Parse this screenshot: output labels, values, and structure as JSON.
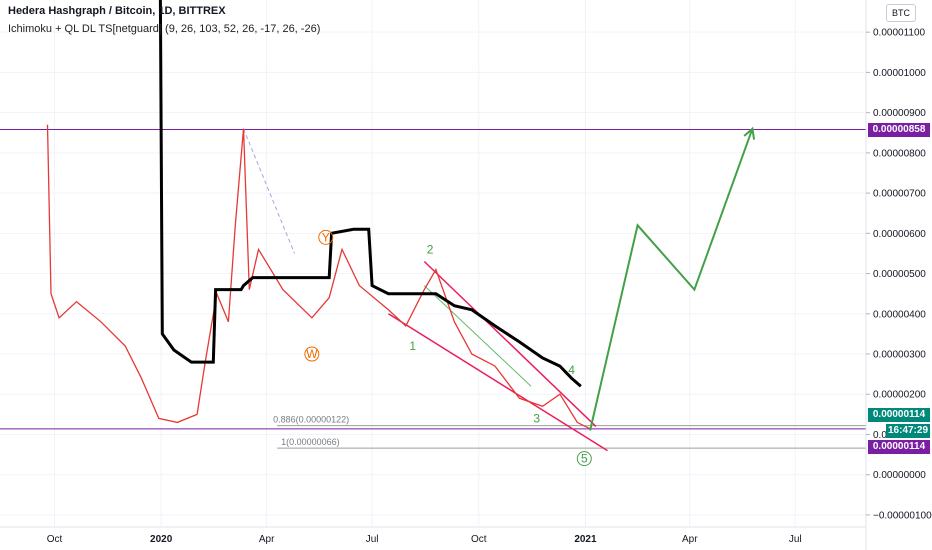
{
  "header": {
    "title": "Hedera Hashgraph / Bitcoin, 1D, BITTREX",
    "indicator": "Ichimoku + QL DL TS[netguard] (9, 26, 103, 52, 26, -17, 26, -26)"
  },
  "currency_button": "BTC",
  "chart_data": {
    "type": "line",
    "x_ticks": [
      "Oct",
      "2020",
      "Apr",
      "Jul",
      "Oct",
      "2021",
      "Apr",
      "Jul"
    ],
    "y_ticks": [
      1.1e-05,
      1e-05,
      9e-06,
      8e-06,
      7e-06,
      6e-06,
      5e-06,
      4e-06,
      3e-06,
      2e-06,
      1e-06,
      0,
      -1e-06
    ],
    "y_tick_labels": [
      "0.00001100",
      "0.00001000",
      "0.00000900",
      "0.00000800",
      "0.00000700",
      "0.00000600",
      "0.00000500",
      "0.00000400",
      "0.00000300",
      "0.00000200",
      "0.00000100",
      "0.00000000",
      "−0.00000100"
    ],
    "ylim": [
      -1.3e-06,
      1.18e-05
    ],
    "x_start": "2019-08-15",
    "x_end": "2021-08-31",
    "price_series": [
      [
        "2019-09-25",
        8.7e-06
      ],
      [
        "2019-09-28",
        4.5e-06
      ],
      [
        "2019-10-05",
        3.9e-06
      ],
      [
        "2019-10-20",
        4.3e-06
      ],
      [
        "2019-11-10",
        3.8e-06
      ],
      [
        "2019-12-01",
        3.2e-06
      ],
      [
        "2019-12-15",
        2.4e-06
      ],
      [
        "2019-12-30",
        1.4e-06
      ],
      [
        "2020-01-15",
        1.3e-06
      ],
      [
        "2020-02-01",
        1.5e-06
      ],
      [
        "2020-02-08",
        2.8e-06
      ],
      [
        "2020-02-18",
        4.5e-06
      ],
      [
        "2020-02-28",
        3.8e-06
      ],
      [
        "2020-03-05",
        6.2e-06
      ],
      [
        "2020-03-12",
        8.6e-06
      ],
      [
        "2020-03-17",
        4.6e-06
      ],
      [
        "2020-03-25",
        5.6e-06
      ],
      [
        "2020-04-15",
        4.6e-06
      ],
      [
        "2020-05-10",
        3.9e-06
      ],
      [
        "2020-05-25",
        4.4e-06
      ],
      [
        "2020-06-05",
        5.6e-06
      ],
      [
        "2020-06-20",
        4.7e-06
      ],
      [
        "2020-07-15",
        4.1e-06
      ],
      [
        "2020-07-30",
        3.7e-06
      ],
      [
        "2020-08-15",
        4.6e-06
      ],
      [
        "2020-08-25",
        5.1e-06
      ],
      [
        "2020-09-10",
        3.8e-06
      ],
      [
        "2020-09-25",
        3e-06
      ],
      [
        "2020-10-15",
        2.7e-06
      ],
      [
        "2020-11-05",
        1.9e-06
      ],
      [
        "2020-11-25",
        1.7e-06
      ],
      [
        "2020-12-10",
        2e-06
      ],
      [
        "2020-12-25",
        1.3e-06
      ],
      [
        "2021-01-05",
        1.14e-06
      ]
    ],
    "ichimoku_line": [
      [
        "2019-12-31",
        1.35e-05
      ],
      [
        "2020-01-02",
        3.5e-06
      ],
      [
        "2020-01-12",
        3.1e-06
      ],
      [
        "2020-01-27",
        2.8e-06
      ],
      [
        "2020-02-15",
        2.8e-06
      ],
      [
        "2020-02-17",
        4.6e-06
      ],
      [
        "2020-03-10",
        4.6e-06
      ],
      [
        "2020-03-12",
        4.7e-06
      ],
      [
        "2020-03-20",
        4.9e-06
      ],
      [
        "2020-05-25",
        4.9e-06
      ],
      [
        "2020-05-27",
        6e-06
      ],
      [
        "2020-06-15",
        6.1e-06
      ],
      [
        "2020-06-28",
        6.1e-06
      ],
      [
        "2020-07-01",
        4.7e-06
      ],
      [
        "2020-07-15",
        4.5e-06
      ],
      [
        "2020-08-25",
        4.5e-06
      ],
      [
        "2020-09-10",
        4.2e-06
      ],
      [
        "2020-09-25",
        4.1e-06
      ],
      [
        "2020-10-15",
        3.7e-06
      ],
      [
        "2020-11-05",
        3.3e-06
      ],
      [
        "2020-11-25",
        2.9e-06
      ],
      [
        "2020-12-10",
        2.7e-06
      ],
      [
        "2020-12-20",
        2.4e-06
      ],
      [
        "2020-12-28",
        2.2e-06
      ]
    ],
    "projection": [
      [
        "2021-01-05",
        1.1e-06
      ],
      [
        "2021-02-15",
        6.2e-06
      ],
      [
        "2021-04-05",
        4.6e-06
      ],
      [
        "2021-05-25",
        8.6e-06
      ]
    ],
    "channel_upper": [
      [
        "2020-08-15",
        5.3e-06
      ],
      [
        "2021-01-10",
        1.2e-06
      ]
    ],
    "channel_lower": [
      [
        "2020-07-15",
        4e-06
      ],
      [
        "2021-01-20",
        6e-07
      ]
    ],
    "guide_dashed": [
      [
        "2020-03-12",
        8.6e-06
      ],
      [
        "2020-04-25",
        5.5e-06
      ]
    ],
    "guide_thin": [
      [
        "2020-08-15",
        4.7e-06
      ],
      [
        "2020-11-15",
        2.2e-06
      ]
    ],
    "h_lines": [
      8.58e-06,
      1.14e-06
    ],
    "fib_levels": [
      {
        "label": "0.886(0.00000122)",
        "value": 1.22e-06
      },
      {
        "label": "1(0.00000066)",
        "value": 6.6e-07
      }
    ],
    "wave_labels": [
      {
        "label": "1",
        "date": "2020-08-05",
        "value": 3.1e-06,
        "color": "#43a047",
        "circled": false
      },
      {
        "label": "2",
        "date": "2020-08-20",
        "value": 5.5e-06,
        "color": "#43a047",
        "circled": false
      },
      {
        "label": "3",
        "date": "2020-11-20",
        "value": 1.3e-06,
        "color": "#43a047",
        "circled": false
      },
      {
        "label": "4",
        "date": "2020-12-20",
        "value": 2.5e-06,
        "color": "#43a047",
        "circled": false
      },
      {
        "label": "5",
        "date": "2020-12-31",
        "value": 3e-07,
        "color": "#43a047",
        "circled": true
      },
      {
        "label": "W",
        "date": "2020-05-10",
        "value": 2.9e-06,
        "color": "#ef6c00",
        "circled": true
      },
      {
        "label": "Y",
        "date": "2020-05-22",
        "value": 5.8e-06,
        "color": "#ef6c00",
        "circled": true
      }
    ],
    "price_labels": [
      {
        "value_label": "0.00000858",
        "color": "#7b1fa2"
      },
      {
        "value_label": "0.00000114",
        "color": "#00897b"
      },
      {
        "value_label": "16:47:29",
        "color": "#00897b"
      },
      {
        "value_label": "0.00000114",
        "color": "#7b1fa2"
      }
    ],
    "colors": {
      "price": "#e53935",
      "ichimoku": "#000000",
      "projection": "#43a047",
      "channel": "#ec1c5a",
      "hline": "#7b1fa2"
    }
  }
}
